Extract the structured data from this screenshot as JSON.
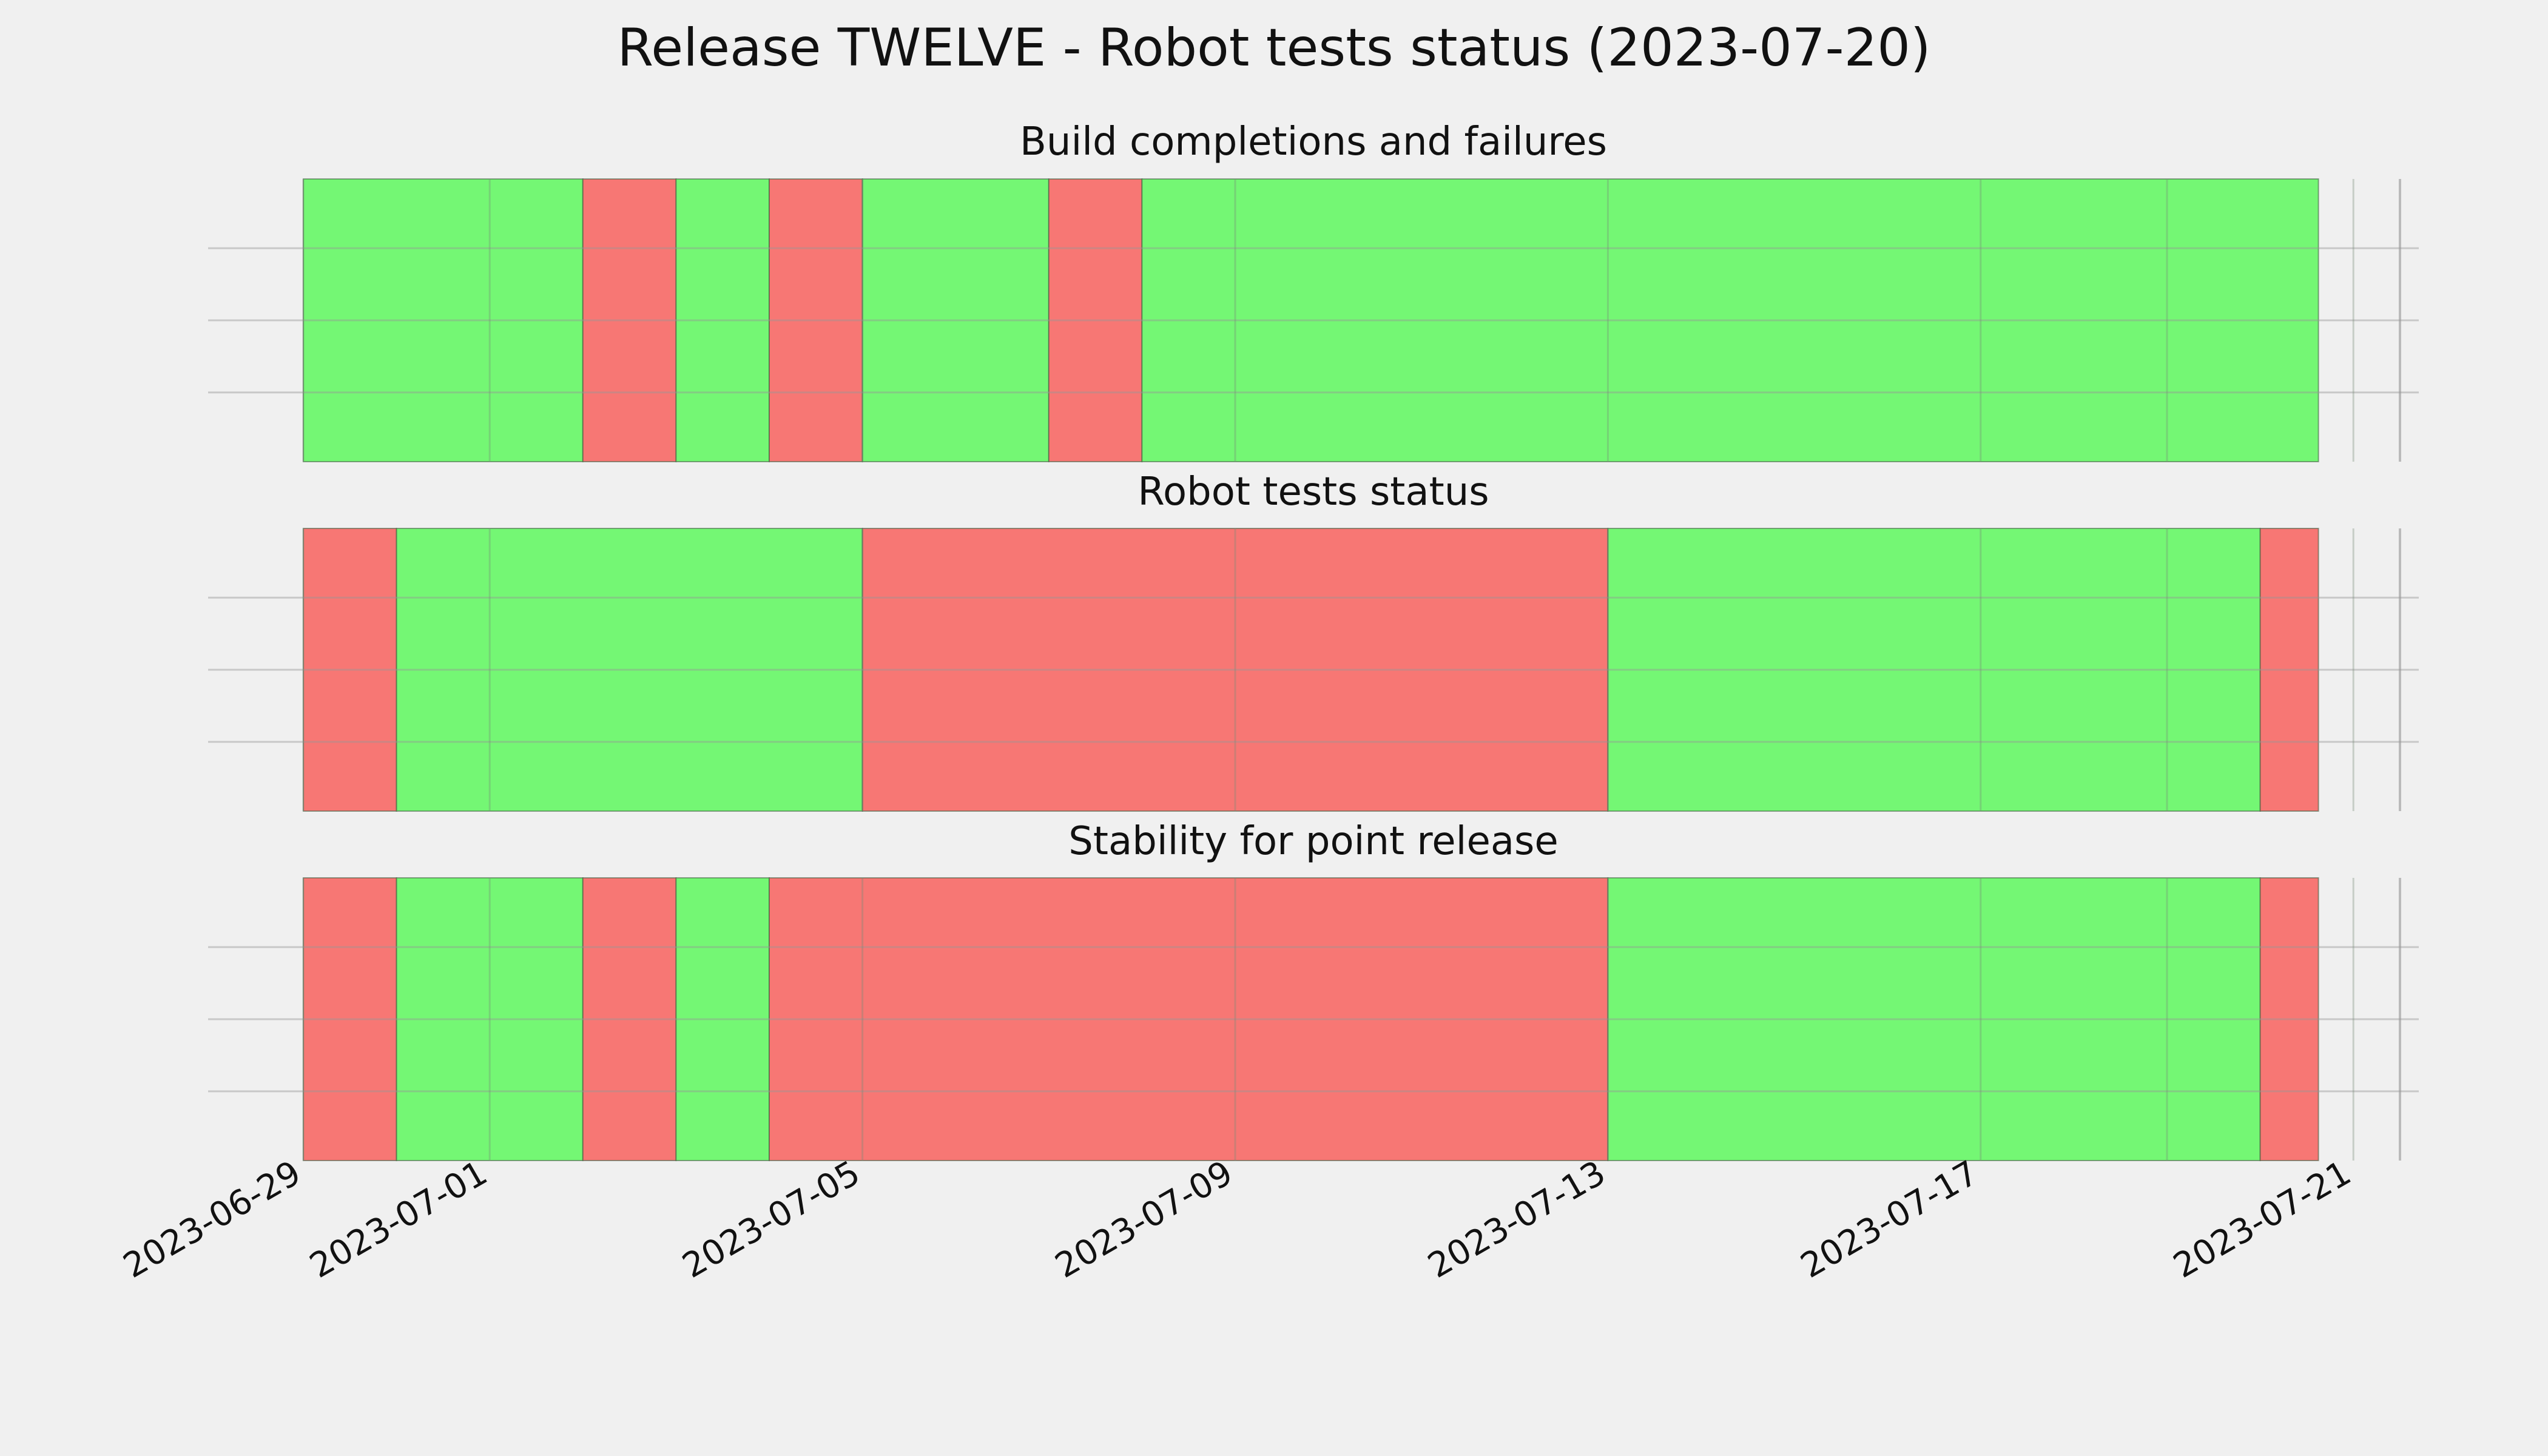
{
  "figure": {
    "title": "Release TWELVE - Robot tests status (2023-07-20)"
  },
  "colors": {
    "background": "#f0f0f0",
    "pass": "#74f774",
    "fail": "#f77774",
    "grid": "#cbcbcb",
    "boundary": "#5a7a5a"
  },
  "chart_data": {
    "type": "timeline",
    "x_axis": {
      "type": "date",
      "range": [
        "2023-06-29",
        "2023-07-22"
      ],
      "ticks": [
        "2023-06-29",
        "2023-07-01",
        "2023-07-05",
        "2023-07-09",
        "2023-07-13",
        "2023-07-17",
        "2023-07-21"
      ],
      "tick_labels": [
        "2023-06-29",
        "2023-07-01",
        "2023-07-05",
        "2023-07-09",
        "2023-07-13",
        "2023-07-17",
        "2023-07-21"
      ],
      "minor_grid_dates": [
        "2023-07-19"
      ]
    },
    "grid": true,
    "panels": [
      {
        "title": "Build completions and failures",
        "segments": [
          {
            "start": "2023-06-29",
            "end": "2023-07-02",
            "status": "pass"
          },
          {
            "start": "2023-07-02",
            "end": "2023-07-03",
            "status": "fail"
          },
          {
            "start": "2023-07-03",
            "end": "2023-07-04",
            "status": "pass"
          },
          {
            "start": "2023-07-04",
            "end": "2023-07-05",
            "status": "fail"
          },
          {
            "start": "2023-07-05",
            "end": "2023-07-07",
            "status": "pass"
          },
          {
            "start": "2023-07-07",
            "end": "2023-07-08",
            "status": "fail"
          },
          {
            "start": "2023-07-08",
            "end": "2023-07-20T15:00",
            "status": "pass"
          }
        ]
      },
      {
        "title": "Robot tests status",
        "segments": [
          {
            "start": "2023-06-29",
            "end": "2023-06-30",
            "status": "fail"
          },
          {
            "start": "2023-06-30",
            "end": "2023-07-05",
            "status": "pass"
          },
          {
            "start": "2023-07-05",
            "end": "2023-07-13",
            "status": "fail"
          },
          {
            "start": "2023-07-13",
            "end": "2023-07-20",
            "status": "pass"
          },
          {
            "start": "2023-07-20",
            "end": "2023-07-20T15:00",
            "status": "fail"
          }
        ]
      },
      {
        "title": "Stability for point release",
        "segments": [
          {
            "start": "2023-06-29",
            "end": "2023-06-30",
            "status": "fail"
          },
          {
            "start": "2023-06-30",
            "end": "2023-07-02",
            "status": "pass"
          },
          {
            "start": "2023-07-02",
            "end": "2023-07-03",
            "status": "fail"
          },
          {
            "start": "2023-07-03",
            "end": "2023-07-04",
            "status": "pass"
          },
          {
            "start": "2023-07-04",
            "end": "2023-07-13",
            "status": "fail"
          },
          {
            "start": "2023-07-13",
            "end": "2023-07-20",
            "status": "pass"
          },
          {
            "start": "2023-07-20",
            "end": "2023-07-20T15:00",
            "status": "fail"
          }
        ]
      }
    ]
  }
}
